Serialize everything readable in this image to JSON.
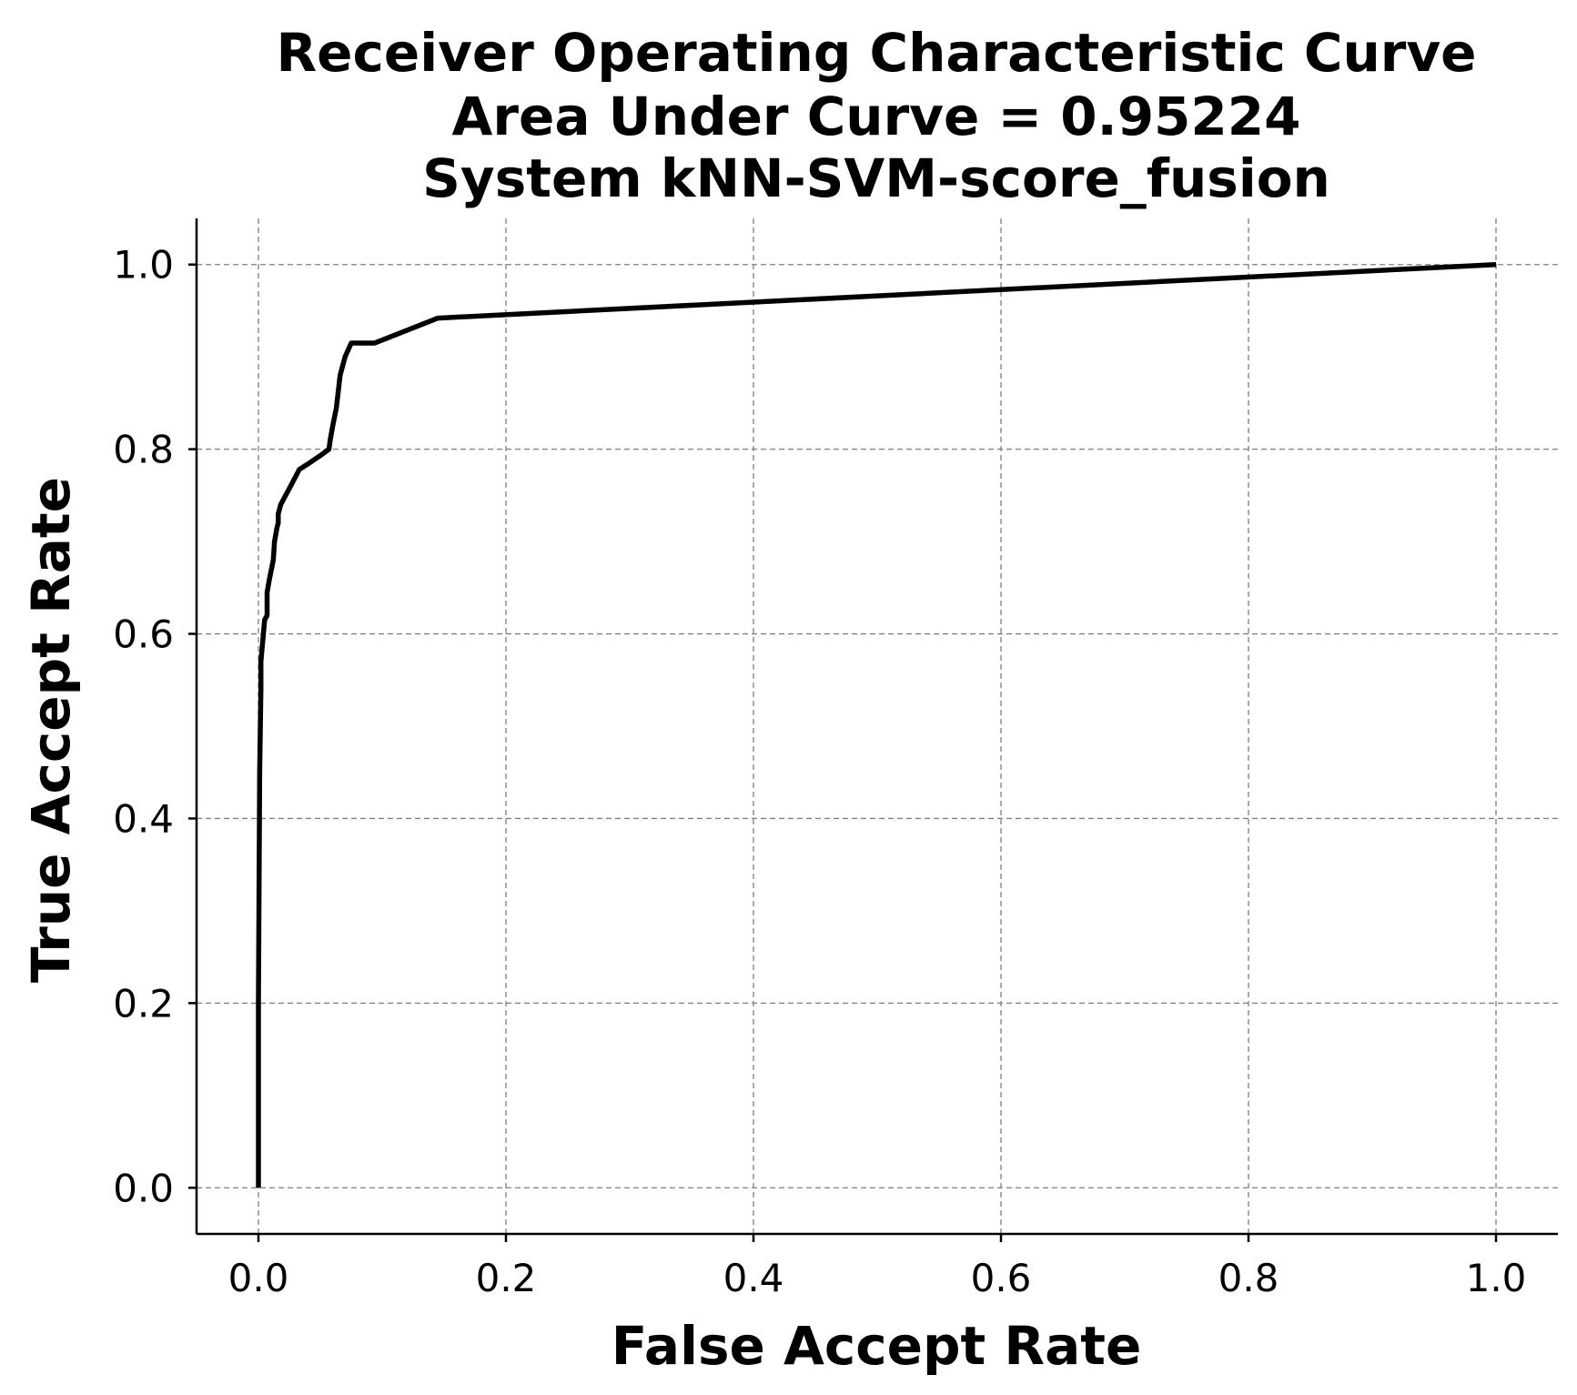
{
  "chart_data": {
    "type": "line",
    "title_lines": [
      "Receiver Operating Characteristic Curve",
      "Area Under Curve = 0.95224",
      "System kNN-SVM-score_fusion"
    ],
    "xlabel": "False Accept Rate",
    "ylabel": "True Accept Rate",
    "xlim": [
      -0.05,
      1.05
    ],
    "ylim": [
      -0.05,
      1.05
    ],
    "xticks": [
      0.0,
      0.2,
      0.4,
      0.6,
      0.8,
      1.0
    ],
    "xtick_labels": [
      "0.0",
      "0.2",
      "0.4",
      "0.6",
      "0.8",
      "1.0"
    ],
    "yticks": [
      0.0,
      0.2,
      0.4,
      0.6,
      0.8,
      1.0
    ],
    "ytick_labels": [
      "0.0",
      "0.2",
      "0.4",
      "0.6",
      "0.8",
      "1.0"
    ],
    "grid": true,
    "line_color": "#000000",
    "grid_color": "#808080",
    "series": [
      {
        "x": [
          0.0,
          0.0,
          0.001,
          0.002,
          0.002,
          0.004,
          0.005,
          0.007,
          0.007,
          0.009,
          0.012,
          0.013,
          0.015,
          0.016,
          0.016,
          0.018,
          0.022,
          0.026,
          0.033,
          0.04,
          0.052,
          0.057,
          0.058,
          0.06,
          0.063,
          0.066,
          0.07,
          0.075,
          0.094,
          0.145,
          1.0
        ],
        "y": [
          0.0,
          0.2,
          0.45,
          0.54,
          0.57,
          0.6,
          0.615,
          0.62,
          0.645,
          0.66,
          0.68,
          0.7,
          0.715,
          0.72,
          0.73,
          0.74,
          0.75,
          0.76,
          0.778,
          0.784,
          0.795,
          0.8,
          0.81,
          0.825,
          0.845,
          0.88,
          0.9,
          0.915,
          0.915,
          0.942,
          1.0
        ]
      }
    ]
  }
}
